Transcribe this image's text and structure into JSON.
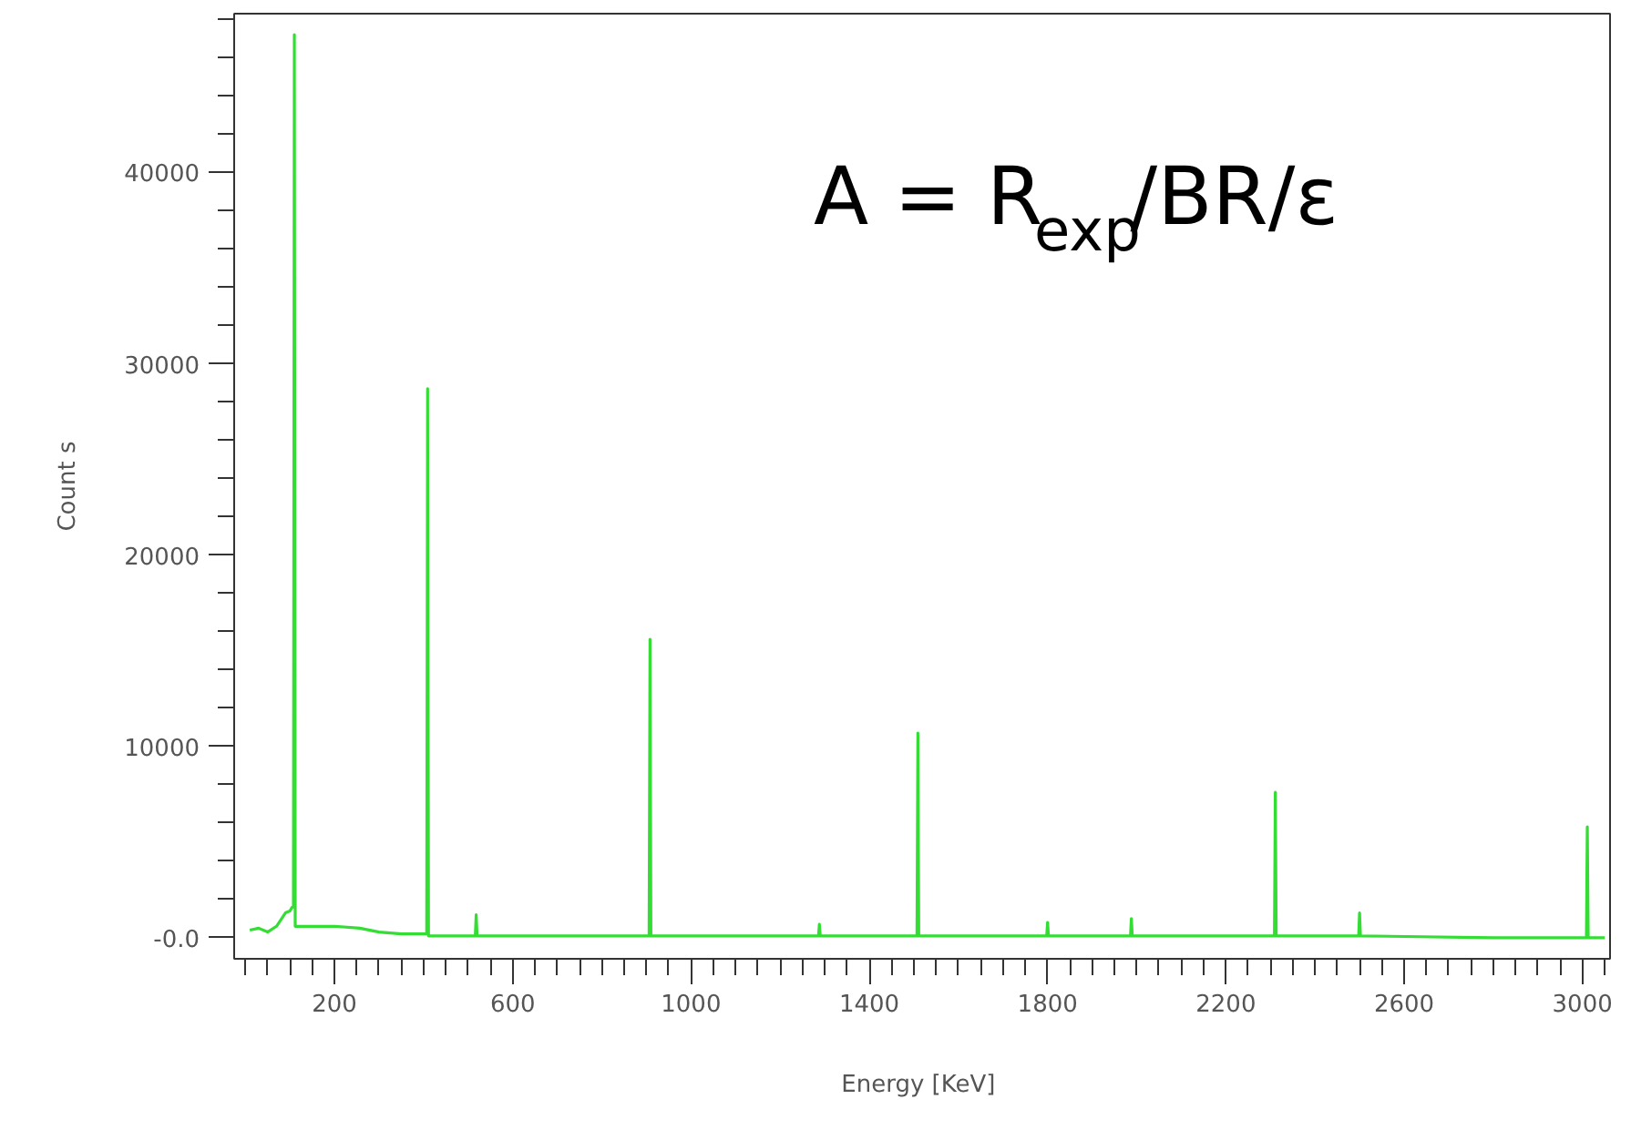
{
  "chart_data": {
    "type": "line",
    "xlabel": "Energy  [KeV]",
    "ylabel": "Count s",
    "annotations": [
      "A = R$_{exp}$/BR/ε"
    ],
    "series": [
      {
        "color": "#33dd33",
        "x": [
          10,
          30,
          50,
          70,
          90,
          100,
          105,
          108,
          110,
          112,
          130,
          160,
          200,
          257,
          300,
          350,
          400,
          407,
          409,
          411,
          516,
          518,
          520,
          700,
          906,
          908,
          910,
          1286,
          1288,
          1290,
          1507,
          1509,
          1511,
          1798,
          1800,
          1802,
          1986,
          1988,
          1990,
          2309,
          2311,
          2313,
          2498,
          2500,
          2502,
          2800,
          3009,
          3011,
          3013,
          3050
        ],
        "values": [
          400,
          500,
          300,
          600,
          1300,
          1400,
          1600,
          1600,
          47200,
          600,
          600,
          600,
          600,
          500,
          300,
          200,
          200,
          200,
          28700,
          100,
          100,
          1200,
          100,
          100,
          100,
          15600,
          100,
          100,
          700,
          100,
          100,
          10700,
          100,
          100,
          800,
          100,
          100,
          1000,
          100,
          100,
          7600,
          100,
          100,
          1300,
          100,
          0,
          0,
          5800,
          0,
          0
        ]
      }
    ],
    "xlim": [
      -25,
      3062
    ],
    "ylim": [
      -1100,
      48300
    ],
    "xticks": [
      200,
      600,
      1000,
      1400,
      1800,
      2200,
      2600,
      3000,
      {
        "value": 0,
        "label": null
      },
      {
        "value": 50,
        "label": null
      },
      {
        "value": 100,
        "label": null
      },
      {
        "value": 150,
        "label": null
      },
      {
        "value": 250,
        "label": null
      },
      {
        "value": 300,
        "label": null
      },
      {
        "value": 350,
        "label": null
      },
      {
        "value": 400,
        "label": null
      },
      {
        "value": 450,
        "label": null
      },
      {
        "value": 500,
        "label": null
      },
      {
        "value": 550,
        "label": null
      },
      {
        "value": 650,
        "label": null
      },
      {
        "value": 700,
        "label": null
      },
      {
        "value": 750,
        "label": null
      },
      {
        "value": 800,
        "label": null
      },
      {
        "value": 850,
        "label": null
      },
      {
        "value": 900,
        "label": null
      },
      {
        "value": 950,
        "label": null
      },
      {
        "value": 1050,
        "label": null
      },
      {
        "value": 1100,
        "label": null
      },
      {
        "value": 1150,
        "label": null
      },
      {
        "value": 1200,
        "label": null
      },
      {
        "value": 1250,
        "label": null
      },
      {
        "value": 1300,
        "label": null
      },
      {
        "value": 1350,
        "label": null
      },
      {
        "value": 1450,
        "label": null
      },
      {
        "value": 1500,
        "label": null
      },
      {
        "value": 1550,
        "label": null
      },
      {
        "value": 1600,
        "label": null
      },
      {
        "value": 1650,
        "label": null
      },
      {
        "value": 1700,
        "label": null
      },
      {
        "value": 1750,
        "label": null
      },
      {
        "value": 1850,
        "label": null
      },
      {
        "value": 1900,
        "label": null
      },
      {
        "value": 1950,
        "label": null
      },
      {
        "value": 2000,
        "label": null
      },
      {
        "value": 2050,
        "label": null
      },
      {
        "value": 2100,
        "label": null
      },
      {
        "value": 2150,
        "label": null
      },
      {
        "value": 2250,
        "label": null
      },
      {
        "value": 2300,
        "label": null
      },
      {
        "value": 2350,
        "label": null
      },
      {
        "value": 2400,
        "label": null
      },
      {
        "value": 2450,
        "label": null
      },
      {
        "value": 2500,
        "label": null
      },
      {
        "value": 2550,
        "label": null
      },
      {
        "value": 2650,
        "label": null
      },
      {
        "value": 2700,
        "label": null
      },
      {
        "value": 2750,
        "label": null
      },
      {
        "value": 2800,
        "label": null
      },
      {
        "value": 2850,
        "label": null
      },
      {
        "value": 2900,
        "label": null
      },
      {
        "value": 2950,
        "label": null
      },
      {
        "value": 3050,
        "label": null
      }
    ],
    "yticks": [
      {
        "value": 0,
        "label": "-0.0"
      },
      10000,
      20000,
      30000,
      40000,
      {
        "value": 2000,
        "label": null
      },
      {
        "value": 4000,
        "label": null
      },
      {
        "value": 6000,
        "label": null
      },
      {
        "value": 8000,
        "label": null
      },
      {
        "value": 12000,
        "label": null
      },
      {
        "value": 14000,
        "label": null
      },
      {
        "value": 16000,
        "label": null
      },
      {
        "value": 18000,
        "label": null
      },
      {
        "value": 22000,
        "label": null
      },
      {
        "value": 24000,
        "label": null
      },
      {
        "value": 26000,
        "label": null
      },
      {
        "value": 28000,
        "label": null
      },
      {
        "value": 32000,
        "label": null
      },
      {
        "value": 34000,
        "label": null
      },
      {
        "value": 36000,
        "label": null
      },
      {
        "value": 38000,
        "label": null
      },
      {
        "value": 42000,
        "label": null
      },
      {
        "value": 44000,
        "label": null
      },
      {
        "value": 46000,
        "label": null
      },
      {
        "value": 48000,
        "label": null
      }
    ],
    "grid": false,
    "marker": "none",
    "line_style": "solid"
  }
}
